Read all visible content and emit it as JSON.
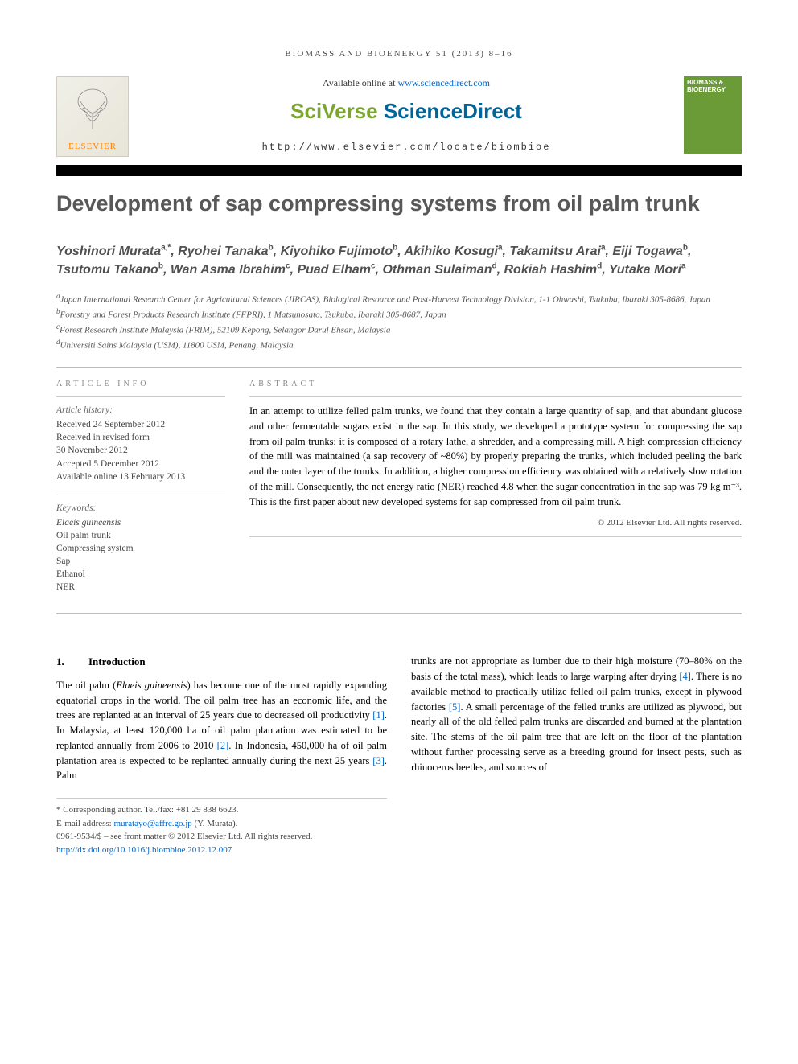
{
  "running_head": "BIOMASS AND BIOENERGY 51 (2013) 8–16",
  "header": {
    "available_prefix": "Available online at ",
    "available_url": "www.sciencedirect.com",
    "platform_sv": "SciVerse ",
    "platform_sd": "ScienceDirect",
    "journal_url": "http://www.elsevier.com/locate/biombioe",
    "elsevier_label": "ELSEVIER",
    "journal_cover_title": "BIOMASS & BIOENERGY"
  },
  "title": "Development of sap compressing systems from oil palm trunk",
  "authors_html": "Yoshinori Murata<sup>a,*</sup>, Ryohei Tanaka<sup>b</sup>, Kiyohiko Fujimoto<sup>b</sup>, Akihiko Kosugi<sup>a</sup>, Takamitsu Arai<sup>a</sup>, Eiji Togawa<sup>b</sup>, Tsutomu Takano<sup>b</sup>, Wan Asma Ibrahim<sup>c</sup>, Puad Elham<sup>c</sup>, Othman Sulaiman<sup>d</sup>, Rokiah Hashim<sup>d</sup>, Yutaka Mori<sup>a</sup>",
  "affiliations": [
    "<sup>a</sup>Japan International Research Center for Agricultural Sciences (JIRCAS), Biological Resource and Post-Harvest Technology Division, 1-1 Ohwashi, Tsukuba, Ibaraki 305-8686, Japan",
    "<sup>b</sup>Forestry and Forest Products Research Institute (FFPRI), 1 Matsunosato, Tsukuba, Ibaraki 305-8687, Japan",
    "<sup>c</sup>Forest Research Institute Malaysia (FRIM), 52109 Kepong, Selangor Darul Ehsan, Malaysia",
    "<sup>d</sup>Universiti Sains Malaysia (USM), 11800 USM, Penang, Malaysia"
  ],
  "article_info": {
    "heading": "ARTICLE INFO",
    "history_label": "Article history:",
    "history": [
      "Received 24 September 2012",
      "Received in revised form",
      "30 November 2012",
      "Accepted 5 December 2012",
      "Available online 13 February 2013"
    ],
    "keywords_label": "Keywords:",
    "keywords": [
      "Elaeis guineensis",
      "Oil palm trunk",
      "Compressing system",
      "Sap",
      "Ethanol",
      "NER"
    ]
  },
  "abstract": {
    "heading": "ABSTRACT",
    "text": "In an attempt to utilize felled palm trunks, we found that they contain a large quantity of sap, and that abundant glucose and other fermentable sugars exist in the sap. In this study, we developed a prototype system for compressing the sap from oil palm trunks; it is composed of a rotary lathe, a shredder, and a compressing mill. A high compression efficiency of the mill was maintained (a sap recovery of ~80%) by properly preparing the trunks, which included peeling the bark and the outer layer of the trunks. In addition, a higher compression efficiency was obtained with a relatively slow rotation of the mill. Consequently, the net energy ratio (NER) reached 4.8 when the sugar concentration in the sap was 79 kg m⁻³. This is the first paper about new developed systems for sap compressed from oil palm trunk.",
    "copyright": "© 2012 Elsevier Ltd. All rights reserved."
  },
  "body": {
    "section_number": "1.",
    "section_title": "Introduction",
    "col1": "The oil palm (<i>Elaeis guineensis</i>) has become one of the most rapidly expanding equatorial crops in the world. The oil palm tree has an economic life, and the trees are replanted at an interval of 25 years due to decreased oil productivity <span class=\"ref-link\">[1]</span>. In Malaysia, at least 120,000 ha of oil palm plantation was estimated to be replanted annually from 2006 to 2010 <span class=\"ref-link\">[2]</span>. In Indonesia, 450,000 ha of oil palm plantation area is expected to be replanted annually during the next 25 years <span class=\"ref-link\">[3]</span>. Palm",
    "col2": "trunks are not appropriate as lumber due to their high moisture (70–80% on the basis of the total mass), which leads to large warping after drying <span class=\"ref-link\">[4]</span>. There is no available method to practically utilize felled oil palm trunks, except in plywood factories <span class=\"ref-link\">[5]</span>. A small percentage of the felled trunks are utilized as plywood, but nearly all of the old felled palm trunks are discarded and burned at the plantation site. The stems of the oil palm tree that are left on the floor of the plantation without further processing serve as a breeding ground for insect pests, such as rhinoceros beetles, and sources of"
  },
  "footer": {
    "corresponding": "* Corresponding author. Tel./fax: +81 29 838 6623.",
    "email_label": "E-mail address: ",
    "email": "muratayo@affrc.go.jp",
    "email_name": " (Y. Murata).",
    "issn": "0961-9534/$ – see front matter © 2012 Elsevier Ltd. All rights reserved.",
    "doi": "http://dx.doi.org/10.1016/j.biombioe.2012.12.007"
  },
  "colors": {
    "title_color": "#585858",
    "link_color": "#0066cc",
    "elsevier_orange": "#ff8200",
    "sciverse_green": "#7aa52e",
    "scidirect_blue": "#006699",
    "cover_green": "#6b9b37",
    "bar_black": "#000000"
  }
}
